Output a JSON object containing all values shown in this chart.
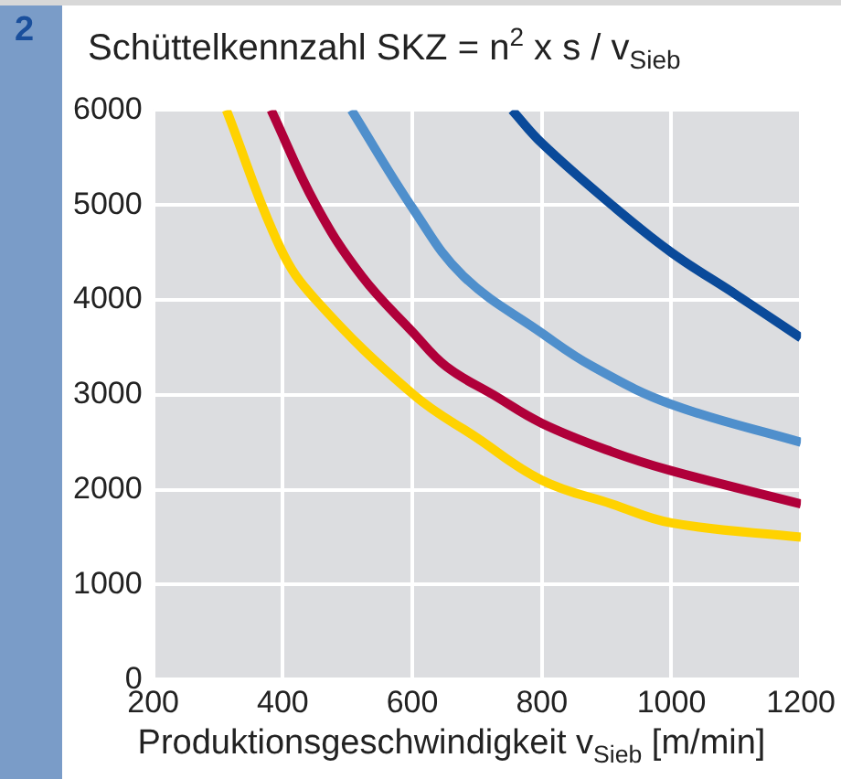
{
  "chart_data": {
    "type": "line",
    "title": "Schüttelkennzahl SKZ = n$^{2}$ x s / v$_{Sieb}$",
    "xlabel": "Produktionsgeschwindigkeit v$_{Sieb}$ [m/min]",
    "annotations": [
      "2"
    ],
    "series": [
      {
        "color": "#ffd200",
        "x": [
          313,
          396,
          451,
          602,
          699,
          800,
          908,
          1000,
          1200
        ],
        "values": [
          6000,
          4550,
          4000,
          3000,
          2550,
          2100,
          1850,
          1650,
          1500
        ]
      },
      {
        "color": "#b0003a",
        "x": [
          382,
          451,
          522,
          602,
          652,
          725,
          800,
          908,
          1000,
          1200
        ],
        "values": [
          6000,
          5000,
          4250,
          3650,
          3300,
          3000,
          2700,
          2400,
          2200,
          1850
        ]
      },
      {
        "color": "#4f8fcc",
        "x": [
          506,
          602,
          679,
          800,
          878,
          1000,
          1200
        ],
        "values": [
          6000,
          4950,
          4250,
          3650,
          3300,
          2900,
          2500
        ]
      },
      {
        "color": "#0a4a9a",
        "x": [
          754,
          800,
          908,
          1000,
          1101,
          1200
        ],
        "values": [
          6000,
          5650,
          5000,
          4500,
          4050,
          3600
        ]
      }
    ],
    "xlim": [
      200,
      1200
    ],
    "xticks": [
      200,
      400,
      600,
      800,
      1000,
      1200
    ],
    "ylim": [
      0,
      6000
    ],
    "yticks": [
      0,
      1000,
      2000,
      3000,
      4000,
      5000,
      6000
    ],
    "grid": true,
    "legend": false,
    "marker": "none",
    "line_style": "solid"
  }
}
